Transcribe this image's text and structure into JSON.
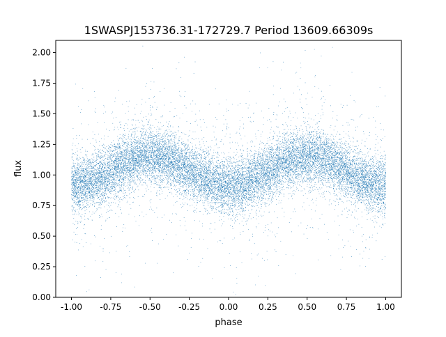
{
  "chart_data": {
    "type": "scatter",
    "title": "1SWASPJ153736.31-172729.7 Period 13609.66309s",
    "xlabel": "phase",
    "ylabel": "flux",
    "xlim": [
      -1.1,
      1.1
    ],
    "ylim": [
      0.0,
      2.1
    ],
    "xticks": [
      "-1.00",
      "-0.75",
      "-0.50",
      "-0.25",
      "0.00",
      "0.25",
      "0.50",
      "0.75",
      "1.00"
    ],
    "yticks": [
      "0.00",
      "0.25",
      "0.50",
      "0.75",
      "1.00",
      "1.25",
      "1.50",
      "1.75",
      "2.00"
    ],
    "grid": false,
    "series": [
      {
        "color": "#1f77b4",
        "model": {
          "phase_range": [
            -1.0,
            1.0
          ],
          "mean_flux": 1.03,
          "amplitude": 0.12,
          "min_phase": [
            -1.0,
            0.0,
            1.0
          ],
          "max_phase": [
            -0.5,
            0.5
          ],
          "scatter_sd": 0.11
        }
      }
    ]
  }
}
